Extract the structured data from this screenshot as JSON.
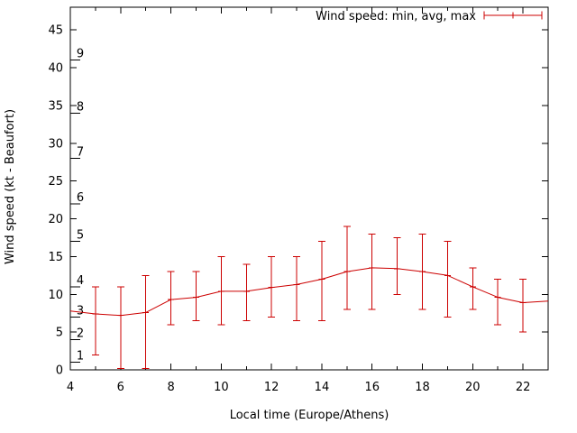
{
  "chart_data": {
    "type": "line",
    "error_bars": true,
    "legend_label": "Wind speed: min, avg, max",
    "legend_position": "top-right-inside",
    "xlabel": "Local time (Europe/Athens)",
    "ylabel": "Wind speed (kt - Beaufort)",
    "xlim": [
      4,
      23
    ],
    "ylim": [
      0,
      48
    ],
    "x_ticks": [
      4,
      6,
      8,
      10,
      12,
      14,
      16,
      18,
      20,
      22
    ],
    "x_minor_ticks_every": 1,
    "y_ticks": [
      0,
      5,
      10,
      15,
      20,
      25,
      30,
      35,
      40,
      45
    ],
    "grid": false,
    "series_color": "#cc0000",
    "axis_color": "#000000",
    "background_color": "#ffffff",
    "beaufort_scale": [
      {
        "label": "1",
        "boundary_kt": 1
      },
      {
        "label": "2",
        "boundary_kt": 4
      },
      {
        "label": "3",
        "boundary_kt": 7
      },
      {
        "label": "4",
        "boundary_kt": 11
      },
      {
        "label": "5",
        "boundary_kt": 17
      },
      {
        "label": "6",
        "boundary_kt": 22
      },
      {
        "label": "7",
        "boundary_kt": 28
      },
      {
        "label": "8",
        "boundary_kt": 34
      },
      {
        "label": "9",
        "boundary_kt": 41
      }
    ],
    "points": [
      {
        "hour": 4,
        "avg": 7.8
      },
      {
        "hour": 5,
        "min": 2.0,
        "avg": 7.4,
        "max": 11.0
      },
      {
        "hour": 6,
        "min": 0.2,
        "avg": 7.2,
        "max": 11.0
      },
      {
        "hour": 7,
        "min": 0.2,
        "avg": 7.6,
        "max": 12.5
      },
      {
        "hour": 8,
        "min": 6.0,
        "avg": 9.3,
        "max": 13.0
      },
      {
        "hour": 9,
        "min": 6.5,
        "avg": 9.6,
        "max": 13.0
      },
      {
        "hour": 10,
        "min": 6.0,
        "avg": 10.4,
        "max": 15.0
      },
      {
        "hour": 11,
        "min": 6.5,
        "avg": 10.4,
        "max": 14.0
      },
      {
        "hour": 12,
        "min": 7.0,
        "avg": 10.9,
        "max": 15.0
      },
      {
        "hour": 13,
        "min": 6.5,
        "avg": 11.3,
        "max": 15.0
      },
      {
        "hour": 14,
        "min": 6.5,
        "avg": 12.0,
        "max": 17.0
      },
      {
        "hour": 15,
        "min": 8.0,
        "avg": 13.0,
        "max": 19.0
      },
      {
        "hour": 16,
        "min": 8.0,
        "avg": 13.5,
        "max": 18.0
      },
      {
        "hour": 17,
        "min": 10.0,
        "avg": 13.4,
        "max": 17.5
      },
      {
        "hour": 18,
        "min": 8.0,
        "avg": 13.0,
        "max": 18.0
      },
      {
        "hour": 19,
        "min": 7.0,
        "avg": 12.5,
        "max": 17.0
      },
      {
        "hour": 20,
        "min": 8.0,
        "avg": 11.0,
        "max": 13.5
      },
      {
        "hour": 21,
        "min": 6.0,
        "avg": 9.6,
        "max": 12.0
      },
      {
        "hour": 22,
        "min": 5.0,
        "avg": 8.9,
        "max": 12.0
      },
      {
        "hour": 23,
        "avg": 9.1
      }
    ]
  }
}
